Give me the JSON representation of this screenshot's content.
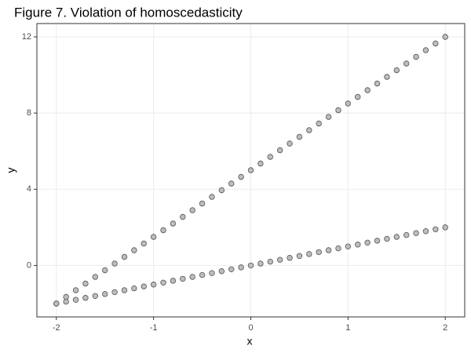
{
  "chart_data": {
    "type": "scatter",
    "title": "Figure 7. Violation of homoscedasticity",
    "x_label": "x",
    "y_label": "y",
    "x": [
      -2,
      -1.9,
      -1.8,
      -1.7,
      -1.6,
      -1.5,
      -1.4,
      -1.3,
      -1.2,
      -1.1,
      -1,
      -0.9,
      -0.8,
      -0.7,
      -0.6,
      -0.5,
      -0.4,
      -0.3,
      -0.2,
      -0.1,
      0,
      0.1,
      0.2,
      0.3,
      0.4,
      0.5,
      0.6,
      0.7,
      0.8,
      0.9,
      1,
      1.1,
      1.2,
      1.3,
      1.4,
      1.5,
      1.6,
      1.7,
      1.8,
      1.9,
      2
    ],
    "series": [
      {
        "color": "#bdbdbd",
        "values": [
          -2,
          -1.65,
          -1.3,
          -0.95,
          -0.6,
          -0.25,
          0.1,
          0.45,
          0.8,
          1.15,
          1.5,
          1.85,
          2.2,
          2.55,
          2.9,
          3.25,
          3.6,
          3.95,
          4.3,
          4.65,
          5,
          5.35,
          5.7,
          6.05,
          6.4,
          6.75,
          7.1,
          7.45,
          7.8,
          8.15,
          8.5,
          8.85,
          9.2,
          9.55,
          9.9,
          10.25,
          10.6,
          10.95,
          11.3,
          11.65,
          12
        ]
      },
      {
        "color": "#bdbdbd",
        "values": [
          -2,
          -1.9,
          -1.8,
          -1.7,
          -1.6,
          -1.5,
          -1.4,
          -1.3,
          -1.2,
          -1.1,
          -1,
          -0.9,
          -0.8,
          -0.7,
          -0.6,
          -0.5,
          -0.4,
          -0.3,
          -0.2,
          -0.1,
          0,
          0.1,
          0.2,
          0.3,
          0.4,
          0.5,
          0.6,
          0.7,
          0.8,
          0.9,
          1,
          1.1,
          1.2,
          1.3,
          1.4,
          1.5,
          1.6,
          1.7,
          1.8,
          1.9,
          2
        ]
      }
    ],
    "xlim": [
      -2.2,
      2.2
    ],
    "ylim": [
      -2.7,
      12.7
    ],
    "xticks": [
      -2,
      -1,
      0,
      1,
      2
    ],
    "yticks": [
      0,
      4,
      8,
      12
    ],
    "grid": true
  }
}
